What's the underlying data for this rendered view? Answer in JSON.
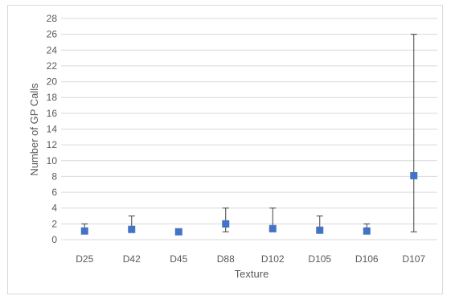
{
  "chart_data": {
    "type": "scatter",
    "title": "",
    "xlabel": "Texture",
    "ylabel": "Number of GP Calls",
    "categories": [
      "D25",
      "D42",
      "D45",
      "D88",
      "D102",
      "D105",
      "D106",
      "D107"
    ],
    "series": [
      {
        "values": [
          1.1,
          1.3,
          1.0,
          2.0,
          1.4,
          1.2,
          1.1,
          8.1
        ],
        "error_low": [
          1,
          1,
          1,
          1,
          1,
          1,
          1,
          1
        ],
        "error_high": [
          2,
          3,
          1,
          4,
          4,
          3,
          2,
          26
        ]
      }
    ],
    "ylim": [
      0,
      28
    ],
    "yticks": [
      0,
      2,
      4,
      6,
      8,
      10,
      12,
      14,
      16,
      18,
      20,
      22,
      24,
      26,
      28
    ],
    "grid": true,
    "marker_color": "#4472c4",
    "error_bar_color": "#404040",
    "grid_color": "#d9d9d9"
  }
}
